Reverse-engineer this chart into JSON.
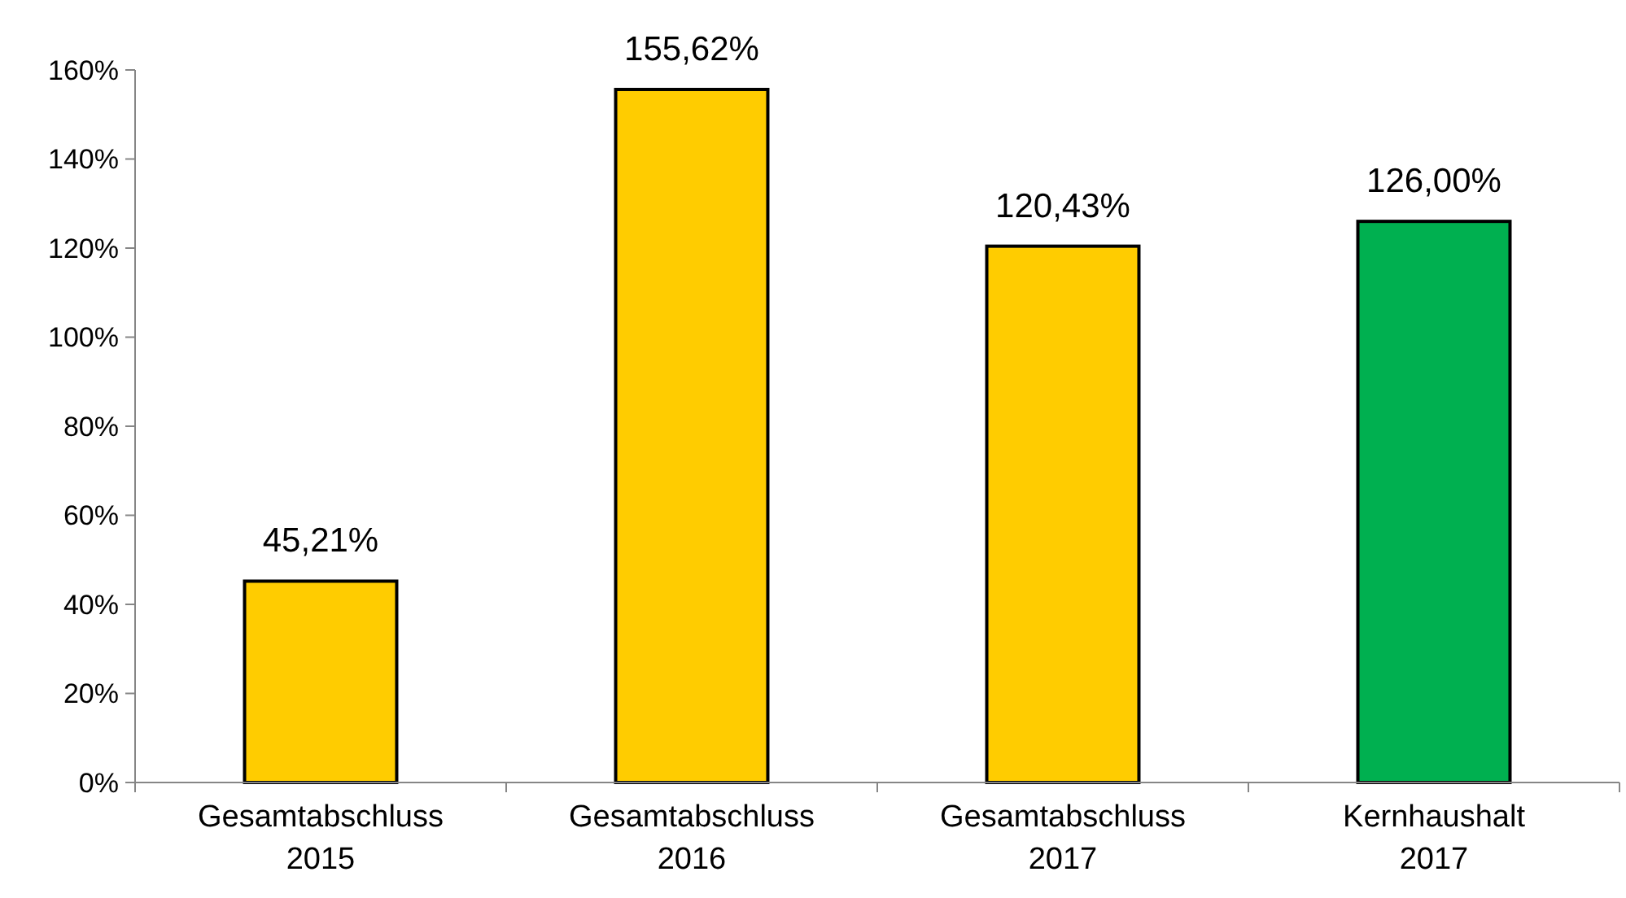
{
  "chart_data": {
    "type": "bar",
    "categories": [
      "Gesamtabschluss 2015",
      "Gesamtabschluss 2016",
      "Gesamtabschluss 2017",
      "Kernhaushalt 2017"
    ],
    "values": [
      45.21,
      155.62,
      120.43,
      126.0
    ],
    "colors": [
      "#ffcc00",
      "#ffcc00",
      "#ffcc00",
      "#00b050"
    ],
    "value_labels": [
      "45,21%",
      "155,62%",
      "120,43%",
      "126,00%"
    ],
    "ylim": [
      0,
      160
    ],
    "yticks": [
      {
        "value": 0,
        "label": "0%"
      },
      {
        "value": 20,
        "label": "20%"
      },
      {
        "value": 40,
        "label": "40%"
      },
      {
        "value": 60,
        "label": "60%"
      },
      {
        "value": 80,
        "label": "80%"
      },
      {
        "value": 100,
        "label": "100%"
      },
      {
        "value": 120,
        "label": "120%"
      },
      {
        "value": 140,
        "label": "140%"
      },
      {
        "value": 160,
        "label": "160%"
      }
    ],
    "grid": false
  }
}
